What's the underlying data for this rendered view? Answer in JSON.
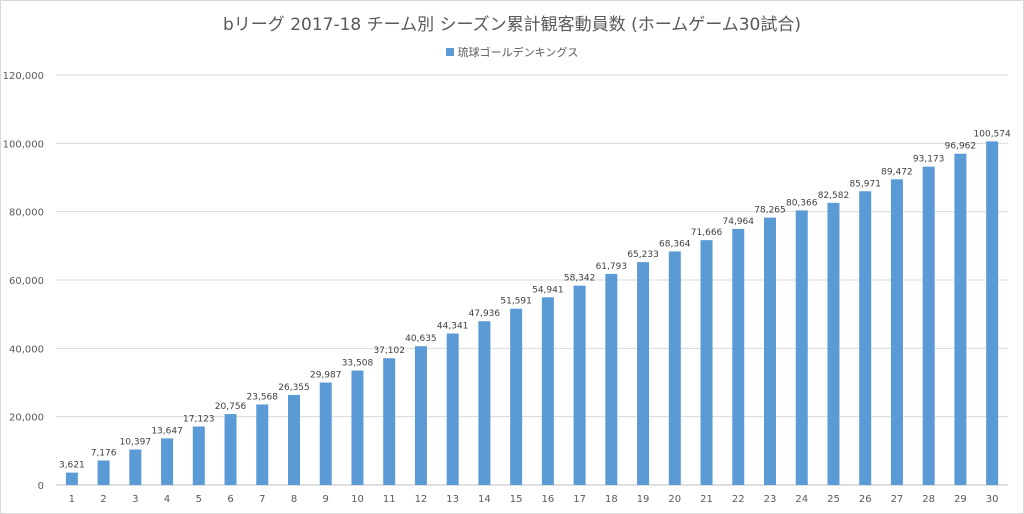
{
  "chart_data": {
    "type": "bar",
    "title": "bリーグ 2017-18 チーム別 シーズン累計観客動員数 (ホームゲーム30試合)",
    "legend_position": "top",
    "grid": true,
    "series": [
      {
        "name": "琉球ゴールデンキングス",
        "color": "#5b9bd5",
        "values": [
          3621,
          7176,
          10397,
          13647,
          17123,
          20756,
          23568,
          26355,
          29987,
          33508,
          37102,
          40635,
          44341,
          47936,
          51591,
          54941,
          58342,
          61793,
          65233,
          68364,
          71666,
          74964,
          78265,
          80366,
          82582,
          85971,
          89472,
          93173,
          96962,
          100574
        ],
        "data_labels": [
          "3,621",
          "7,176",
          "10,397",
          "13,647",
          "17,123",
          "20,756",
          "23,568",
          "26,355",
          "29,987",
          "33,508",
          "37,102",
          "40,635",
          "44,341",
          "47,936",
          "51,591",
          "54,941",
          "58,342",
          "61,793",
          "65,233",
          "68,364",
          "71,666",
          "74,964",
          "78,265",
          "80,366",
          "82,582",
          "85,971",
          "89,472",
          "93,173",
          "96,962",
          "100,574"
        ]
      }
    ],
    "categories": [
      "1",
      "2",
      "3",
      "4",
      "5",
      "6",
      "7",
      "8",
      "9",
      "10",
      "11",
      "12",
      "13",
      "14",
      "15",
      "16",
      "17",
      "18",
      "19",
      "20",
      "21",
      "22",
      "23",
      "24",
      "25",
      "26",
      "27",
      "28",
      "29",
      "30"
    ],
    "ylim": [
      0,
      120000
    ],
    "yticks": [
      0,
      20000,
      40000,
      60000,
      80000,
      100000,
      120000
    ],
    "ytick_labels": [
      "0",
      "20,000",
      "40,000",
      "60,000",
      "80,000",
      "100,000",
      "120,000"
    ]
  }
}
